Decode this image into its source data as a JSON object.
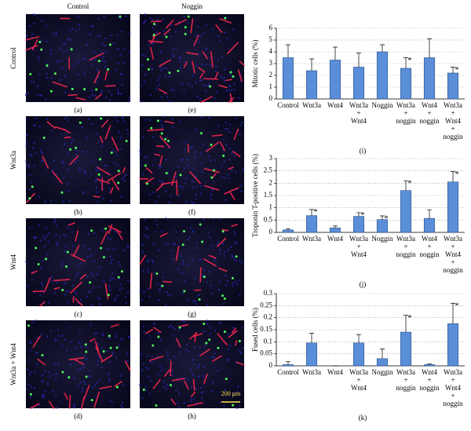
{
  "panels": {
    "column_headers": [
      "Control",
      "Noggin"
    ],
    "row_labels": [
      "Control",
      "Wnt3a",
      "Wnt4",
      "Wnt3a + Wnt4"
    ],
    "letters": [
      [
        "(a)",
        "(e)"
      ],
      [
        "(b)",
        "(f)"
      ],
      [
        "(c)",
        "(g)"
      ],
      [
        "(d)",
        "(h)"
      ]
    ],
    "scale_bar": "200 μm"
  },
  "chart_data": [
    {
      "type": "bar",
      "label": "(i)",
      "ylabel": "Mitotic cells (%)",
      "categories": [
        [
          "Control"
        ],
        [
          "Wnt3a"
        ],
        [
          "Wnt4"
        ],
        [
          "Wnt3a",
          "+",
          "Wnt4"
        ],
        [
          "Noggin"
        ],
        [
          "Wnt3a",
          "+",
          "noggin"
        ],
        [
          "Wnt4",
          "+",
          "noggin"
        ],
        [
          "Wnt3a",
          "+",
          "Wnt4",
          "+",
          "noggin"
        ]
      ],
      "values": [
        3.5,
        2.4,
        3.3,
        2.7,
        4.0,
        2.6,
        3.5,
        2.2
      ],
      "errors": [
        1.1,
        1.0,
        1.1,
        1.2,
        0.6,
        0.9,
        1.6,
        0.5
      ],
      "significance": [
        false,
        false,
        false,
        false,
        false,
        true,
        false,
        true
      ],
      "significance_marker": "*",
      "color": "#5b8ed8",
      "ylim": [
        0,
        6
      ],
      "yticks": [
        0,
        1,
        2,
        3,
        4,
        5,
        6
      ],
      "grid": true
    },
    {
      "type": "bar",
      "label": "(j)",
      "ylabel": "Troponin T-positive cells (%)",
      "categories": [
        [
          "Control"
        ],
        [
          "Wnt3a"
        ],
        [
          "Wnt4"
        ],
        [
          "Wnt3a",
          "+",
          "Wnt4"
        ],
        [
          "Noggin"
        ],
        [
          "Wnt3a",
          "+",
          "noggin"
        ],
        [
          "Wnt4",
          "+",
          "noggin"
        ],
        [
          "Wnt3a",
          "+",
          "Wnt4",
          "+",
          "noggin"
        ]
      ],
      "values": [
        0.1,
        0.68,
        0.18,
        0.65,
        0.52,
        1.7,
        0.57,
        2.05
      ],
      "errors": [
        0.05,
        0.25,
        0.08,
        0.15,
        0.15,
        0.4,
        0.35,
        0.42
      ],
      "significance": [
        false,
        true,
        false,
        true,
        true,
        true,
        false,
        true
      ],
      "significance_marker": "*",
      "color": "#5b8ed8",
      "ylim": [
        0,
        3
      ],
      "yticks": [
        0,
        0.5,
        1,
        1.5,
        2,
        2.5,
        3
      ],
      "grid": true
    },
    {
      "type": "bar",
      "label": "(k)",
      "ylabel": "Fused cells (%)",
      "categories": [
        [
          "Control"
        ],
        [
          "Wnt3a"
        ],
        [
          "Wnt4"
        ],
        [
          "Wnt3a",
          "+",
          "Wnt4"
        ],
        [
          "Noggin"
        ],
        [
          "Wnt3a",
          "+",
          "noggin"
        ],
        [
          "Wnt4",
          "+",
          "noggin"
        ],
        [
          "Wnt3a",
          "+",
          "Wnt4",
          "+",
          "noggin"
        ]
      ],
      "values": [
        0.005,
        0.095,
        0,
        0.095,
        0.03,
        0.14,
        0.005,
        0.175
      ],
      "errors": [
        0.012,
        0.04,
        0,
        0.035,
        0.04,
        0.07,
        0.003,
        0.085
      ],
      "significance": [
        false,
        false,
        false,
        false,
        false,
        true,
        false,
        true
      ],
      "significance_marker": "*",
      "color": "#5b8ed8",
      "ylim": [
        0,
        0.3
      ],
      "yticks": [
        0,
        0.05,
        0.1,
        0.15,
        0.2,
        0.25,
        0.3
      ],
      "grid": true
    }
  ]
}
